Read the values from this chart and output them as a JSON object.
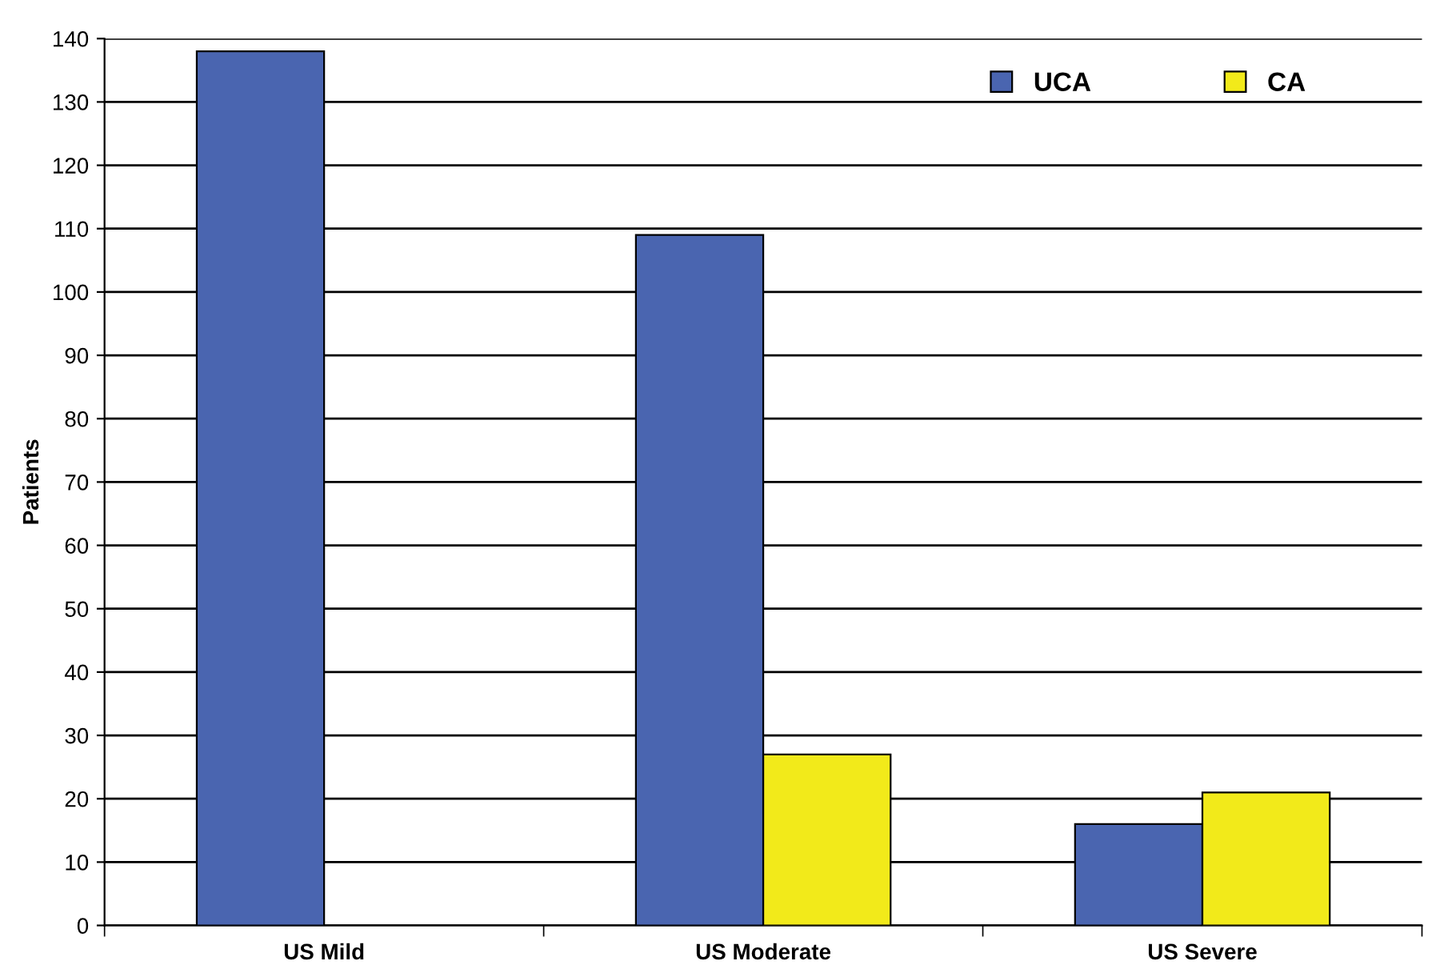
{
  "chart_data": {
    "type": "bar",
    "ylabel": "Patients",
    "categories": [
      "US Mild",
      "US Moderate",
      "US Severe"
    ],
    "series": [
      {
        "name": "UCA",
        "color": "#4a65b0",
        "values": [
          138,
          109,
          16
        ]
      },
      {
        "name": "CA",
        "color": "#f2ea1a",
        "values": [
          null,
          27,
          21
        ]
      }
    ],
    "ylim": [
      0,
      140
    ],
    "yticks": [
      0,
      10,
      20,
      30,
      40,
      50,
      60,
      70,
      80,
      90,
      100,
      110,
      120,
      130,
      140
    ],
    "grid": "y",
    "legend": "top right"
  }
}
